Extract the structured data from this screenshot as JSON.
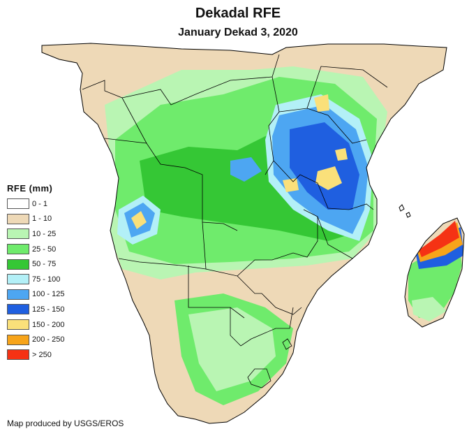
{
  "map": {
    "title": "Dekadal RFE",
    "subtitle": "January Dekad 3, 2020",
    "region": "Southern and Eastern Africa",
    "legend": {
      "title": "RFE (mm)",
      "classes": [
        {
          "label": "0 - 1",
          "color": "#ffffff"
        },
        {
          "label": "1 - 10",
          "color": "#eed9b7"
        },
        {
          "label": "10 - 25",
          "color": "#b9f5b3"
        },
        {
          "label": "25 - 50",
          "color": "#6feb6c"
        },
        {
          "label": "50 - 75",
          "color": "#35c735"
        },
        {
          "label": "75 - 100",
          "color": "#b3f0f7"
        },
        {
          "label": "100 - 125",
          "color": "#4da6f2"
        },
        {
          "label": "125 - 150",
          "color": "#1f5fe0"
        },
        {
          "label": "150 - 200",
          "color": "#fae07a"
        },
        {
          "label": "200 - 250",
          "color": "#f7a41a"
        },
        {
          "label": "> 250",
          "color": "#f53214"
        }
      ]
    },
    "credit": "Map produced by USGS/EROS",
    "colors": {
      "border": "#000000",
      "coast": "#000000"
    }
  }
}
